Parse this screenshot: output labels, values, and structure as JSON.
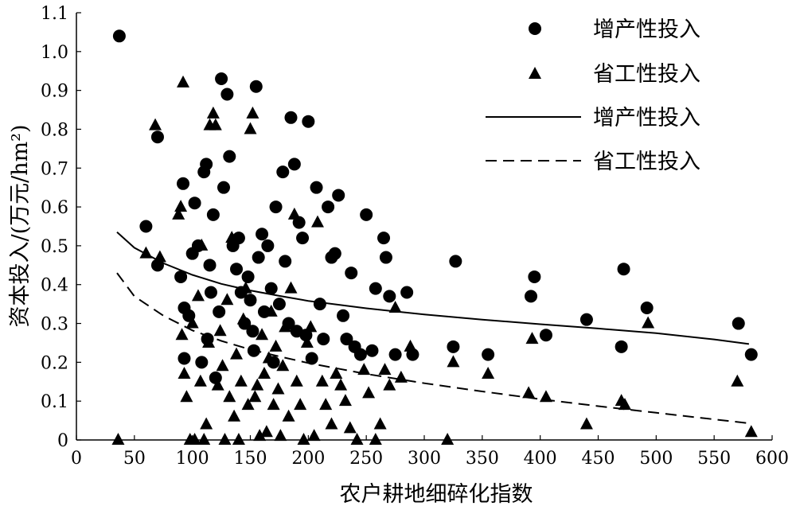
{
  "chart_data": {
    "type": "scatter",
    "xlabel": "农户耕地细碎化指数",
    "ylabel": "资本投入/(万元/hm²)",
    "xlim": [
      0,
      600
    ],
    "ylim": [
      0,
      1.1
    ],
    "xticks": [
      0,
      50,
      100,
      150,
      200,
      250,
      300,
      350,
      400,
      450,
      500,
      550,
      600
    ],
    "yticks": [
      0,
      0.1,
      0.2,
      0.3,
      0.4,
      0.5,
      0.6,
      0.7,
      0.8,
      0.9,
      1.0,
      1.1
    ],
    "xtick_labels": [
      "0",
      "50",
      "100",
      "150",
      "200",
      "250",
      "300",
      "350",
      "400",
      "450",
      "500",
      "550",
      "600"
    ],
    "ytick_labels": [
      "0",
      "0.1",
      "0.2",
      "0.3",
      "0.4",
      "0.5",
      "0.6",
      "0.7",
      "0.8",
      "0.9",
      "1.0",
      "1.1"
    ],
    "grid": false,
    "legend_position": "top-right",
    "series": [
      {
        "name": "增产性投入",
        "kind": "scatter",
        "marker": "circle",
        "points": [
          [
            37,
            1.04
          ],
          [
            60,
            0.55
          ],
          [
            70,
            0.78
          ],
          [
            70,
            0.45
          ],
          [
            90,
            0.42
          ],
          [
            92,
            0.66
          ],
          [
            93,
            0.34
          ],
          [
            93,
            0.21
          ],
          [
            97,
            0.32
          ],
          [
            100,
            0.48
          ],
          [
            102,
            0.61
          ],
          [
            105,
            0.5
          ],
          [
            108,
            0.2
          ],
          [
            110,
            0.69
          ],
          [
            112,
            0.71
          ],
          [
            113,
            0.26
          ],
          [
            115,
            0.45
          ],
          [
            116,
            0.38
          ],
          [
            118,
            0.58
          ],
          [
            120,
            0.16
          ],
          [
            123,
            0.33
          ],
          [
            125,
            0.93
          ],
          [
            127,
            0.65
          ],
          [
            130,
            0.89
          ],
          [
            132,
            0.73
          ],
          [
            135,
            0.5
          ],
          [
            138,
            0.44
          ],
          [
            140,
            0.52
          ],
          [
            142,
            0.38
          ],
          [
            145,
            0.3
          ],
          [
            148,
            0.42
          ],
          [
            150,
            0.36
          ],
          [
            152,
            0.28
          ],
          [
            153,
            0.23
          ],
          [
            155,
            0.91
          ],
          [
            157,
            0.47
          ],
          [
            160,
            0.53
          ],
          [
            162,
            0.33
          ],
          [
            165,
            0.5
          ],
          [
            168,
            0.39
          ],
          [
            170,
            0.2
          ],
          [
            172,
            0.6
          ],
          [
            175,
            0.35
          ],
          [
            178,
            0.69
          ],
          [
            180,
            0.46
          ],
          [
            183,
            0.3
          ],
          [
            185,
            0.83
          ],
          [
            188,
            0.71
          ],
          [
            190,
            0.28
          ],
          [
            192,
            0.56
          ],
          [
            195,
            0.52
          ],
          [
            198,
            0.27
          ],
          [
            200,
            0.82
          ],
          [
            203,
            0.21
          ],
          [
            207,
            0.65
          ],
          [
            210,
            0.35
          ],
          [
            213,
            0.26
          ],
          [
            217,
            0.6
          ],
          [
            220,
            0.47
          ],
          [
            223,
            0.48
          ],
          [
            226,
            0.63
          ],
          [
            230,
            0.32
          ],
          [
            233,
            0.26
          ],
          [
            237,
            0.43
          ],
          [
            240,
            0.24
          ],
          [
            245,
            0.22
          ],
          [
            250,
            0.58
          ],
          [
            255,
            0.23
          ],
          [
            258,
            0.39
          ],
          [
            265,
            0.52
          ],
          [
            267,
            0.47
          ],
          [
            270,
            0.37
          ],
          [
            275,
            0.22
          ],
          [
            285,
            0.38
          ],
          [
            290,
            0.22
          ],
          [
            325,
            0.24
          ],
          [
            327,
            0.46
          ],
          [
            355,
            0.22
          ],
          [
            392,
            0.37
          ],
          [
            395,
            0.42
          ],
          [
            405,
            0.27
          ],
          [
            440,
            0.31
          ],
          [
            470,
            0.24
          ],
          [
            472,
            0.44
          ],
          [
            492,
            0.34
          ],
          [
            571,
            0.3
          ],
          [
            582,
            0.22
          ]
        ]
      },
      {
        "name": "省工性投入",
        "kind": "scatter",
        "marker": "triangle",
        "points": [
          [
            36,
            0.0
          ],
          [
            60,
            0.48
          ],
          [
            68,
            0.81
          ],
          [
            72,
            0.47
          ],
          [
            88,
            0.58
          ],
          [
            90,
            0.6
          ],
          [
            91,
            0.27
          ],
          [
            92,
            0.92
          ],
          [
            93,
            0.17
          ],
          [
            95,
            0.11
          ],
          [
            98,
            0.0
          ],
          [
            100,
            0.3
          ],
          [
            102,
            0.0
          ],
          [
            105,
            0.37
          ],
          [
            107,
            0.15
          ],
          [
            108,
            0.5
          ],
          [
            110,
            0.0
          ],
          [
            112,
            0.04
          ],
          [
            114,
            0.25
          ],
          [
            115,
            0.81
          ],
          [
            118,
            0.84
          ],
          [
            120,
            0.81
          ],
          [
            122,
            0.14
          ],
          [
            124,
            0.28
          ],
          [
            126,
            0.19
          ],
          [
            128,
            0.0
          ],
          [
            130,
            0.36
          ],
          [
            132,
            0.11
          ],
          [
            134,
            0.52
          ],
          [
            136,
            0.06
          ],
          [
            138,
            0.22
          ],
          [
            140,
            0.0
          ],
          [
            142,
            0.15
          ],
          [
            144,
            0.31
          ],
          [
            146,
            0.39
          ],
          [
            148,
            0.09
          ],
          [
            150,
            0.8
          ],
          [
            152,
            0.84
          ],
          [
            154,
            0.11
          ],
          [
            156,
            0.14
          ],
          [
            158,
            0.01
          ],
          [
            160,
            0.27
          ],
          [
            162,
            0.17
          ],
          [
            164,
            0.02
          ],
          [
            166,
            0.21
          ],
          [
            168,
            0.33
          ],
          [
            170,
            0.09
          ],
          [
            172,
            0.24
          ],
          [
            174,
            0.13
          ],
          [
            176,
            0.01
          ],
          [
            178,
            0.19
          ],
          [
            180,
            0.29
          ],
          [
            183,
            0.06
          ],
          [
            185,
            0.39
          ],
          [
            188,
            0.58
          ],
          [
            190,
            0.15
          ],
          [
            193,
            0.09
          ],
          [
            196,
            0.0
          ],
          [
            199,
            0.25
          ],
          [
            202,
            0.29
          ],
          [
            205,
            0.01
          ],
          [
            208,
            0.56
          ],
          [
            212,
            0.15
          ],
          [
            215,
            0.09
          ],
          [
            220,
            0.04
          ],
          [
            224,
            0.17
          ],
          [
            228,
            0.14
          ],
          [
            232,
            0.1
          ],
          [
            236,
            0.03
          ],
          [
            242,
            0.0
          ],
          [
            248,
            0.18
          ],
          [
            252,
            0.12
          ],
          [
            258,
            0.0
          ],
          [
            262,
            0.04
          ],
          [
            266,
            0.18
          ],
          [
            270,
            0.14
          ],
          [
            275,
            0.34
          ],
          [
            280,
            0.16
          ],
          [
            288,
            0.24
          ],
          [
            320,
            0.0
          ],
          [
            325,
            0.2
          ],
          [
            355,
            0.17
          ],
          [
            390,
            0.12
          ],
          [
            393,
            0.26
          ],
          [
            405,
            0.11
          ],
          [
            440,
            0.04
          ],
          [
            470,
            0.1
          ],
          [
            473,
            0.09
          ],
          [
            493,
            0.3
          ],
          [
            570,
            0.15
          ],
          [
            582,
            0.02
          ]
        ]
      },
      {
        "name": "增产性投入",
        "kind": "line",
        "style": "solid",
        "x": [
          35,
          50,
          75,
          100,
          125,
          150,
          175,
          200,
          250,
          300,
          350,
          400,
          450,
          500,
          550,
          580
        ],
        "y": [
          0.535,
          0.495,
          0.455,
          0.425,
          0.402,
          0.385,
          0.371,
          0.358,
          0.339,
          0.323,
          0.31,
          0.298,
          0.287,
          0.275,
          0.259,
          0.247
        ]
      },
      {
        "name": "省工性投入",
        "kind": "line",
        "style": "dashed",
        "x": [
          35,
          50,
          75,
          100,
          125,
          150,
          175,
          200,
          250,
          300,
          350,
          400,
          450,
          500,
          550,
          580
        ],
        "y": [
          0.43,
          0.37,
          0.32,
          0.282,
          0.255,
          0.233,
          0.215,
          0.198,
          0.17,
          0.146,
          0.125,
          0.105,
          0.087,
          0.07,
          0.053,
          0.043
        ]
      }
    ]
  }
}
